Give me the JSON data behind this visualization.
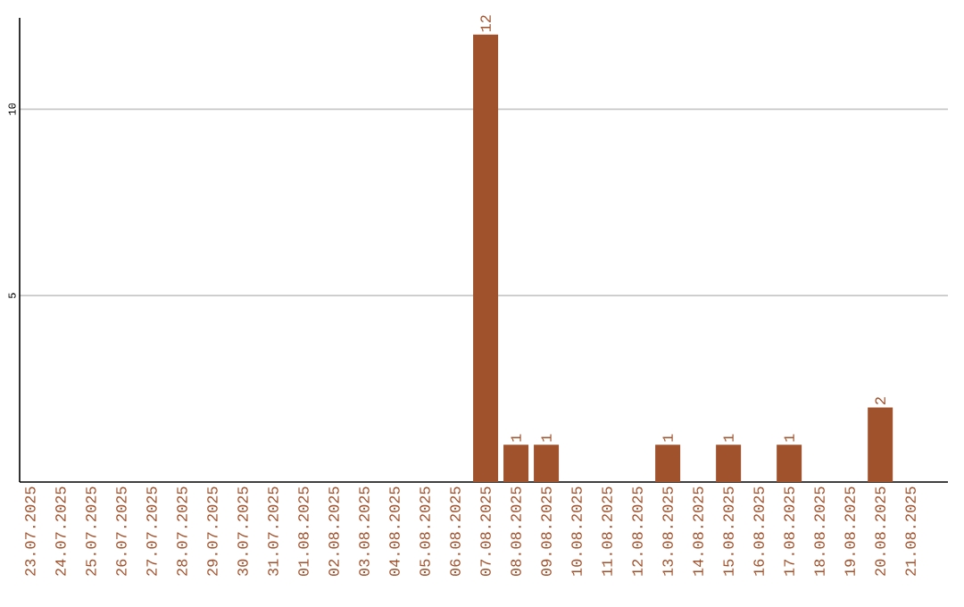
{
  "chart_data": {
    "type": "bar",
    "categories": [
      "23.07.2025",
      "24.07.2025",
      "25.07.2025",
      "26.07.2025",
      "27.07.2025",
      "28.07.2025",
      "29.07.2025",
      "30.07.2025",
      "31.07.2025",
      "01.08.2025",
      "02.08.2025",
      "03.08.2025",
      "04.08.2025",
      "05.08.2025",
      "06.08.2025",
      "07.08.2025",
      "08.08.2025",
      "09.08.2025",
      "10.08.2025",
      "11.08.2025",
      "12.08.2025",
      "13.08.2025",
      "14.08.2025",
      "15.08.2025",
      "16.08.2025",
      "17.08.2025",
      "18.08.2025",
      "19.08.2025",
      "20.08.2025",
      "21.08.2025"
    ],
    "values": [
      0,
      0,
      0,
      0,
      0,
      0,
      0,
      0,
      0,
      0,
      0,
      0,
      0,
      0,
      0,
      12,
      1,
      1,
      0,
      0,
      0,
      1,
      0,
      1,
      0,
      1,
      0,
      0,
      2,
      0
    ],
    "value_labels": [
      null,
      null,
      null,
      null,
      null,
      null,
      null,
      null,
      null,
      null,
      null,
      null,
      null,
      null,
      null,
      "12",
      "1",
      "1",
      null,
      null,
      null,
      "1",
      null,
      "1",
      null,
      "1",
      null,
      null,
      "2",
      null
    ],
    "color": "#a0522d",
    "ylim": [
      0,
      12.45
    ],
    "yticks": [
      5,
      10
    ],
    "grid": "y"
  }
}
